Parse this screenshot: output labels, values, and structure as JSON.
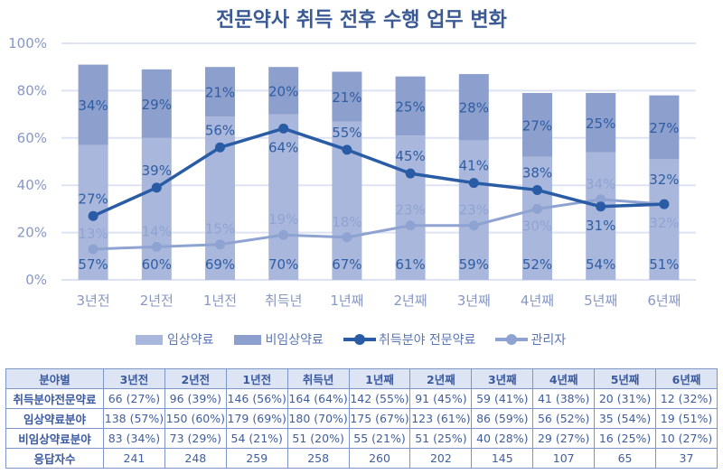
{
  "title": "전문약사 취득 전후 수행 업무 변화",
  "colors": {
    "clinical": "#a9b7dc",
    "non_clinical": "#8c9fcd",
    "specialist_line": "#2a5ca6",
    "manager_line": "#8fa3d2",
    "axis_text": "#8898c4",
    "grid": "#dde3f2"
  },
  "chart_data": {
    "type": "bar",
    "title": "전문약사 취득 전후 수행 업무 변화",
    "xlabel": "",
    "ylabel": "",
    "ylim": [
      0,
      100
    ],
    "yticks": [
      "0%",
      "20%",
      "40%",
      "60%",
      "80%",
      "100%"
    ],
    "grid": true,
    "legend_position": "bottom",
    "categories": [
      "3년전",
      "2년전",
      "1년전",
      "취득년",
      "1년째",
      "2년째",
      "3년째",
      "4년째",
      "5년째",
      "6년째"
    ],
    "series": [
      {
        "name": "임상약료",
        "type": "stacked-bar",
        "values": [
          57,
          60,
          69,
          70,
          67,
          61,
          59,
          52,
          54,
          51
        ]
      },
      {
        "name": "비임상약료",
        "type": "stacked-bar",
        "values": [
          34,
          29,
          21,
          20,
          21,
          25,
          28,
          27,
          25,
          27
        ]
      },
      {
        "name": "취득분야 전문약료",
        "type": "line",
        "values": [
          27,
          39,
          56,
          64,
          55,
          45,
          41,
          38,
          31,
          32
        ]
      },
      {
        "name": "관리자",
        "type": "line",
        "values": [
          13,
          14,
          15,
          19,
          18,
          23,
          23,
          30,
          34,
          32
        ]
      }
    ]
  },
  "legend": [
    {
      "label": "임상약료",
      "kind": "bar-light"
    },
    {
      "label": "비임상약료",
      "kind": "bar-dark"
    },
    {
      "label": "취득분야 전문약료",
      "kind": "line-dark"
    },
    {
      "label": "관리자",
      "kind": "line-light"
    }
  ],
  "table": {
    "headers": [
      "분야별",
      "3년전",
      "2년전",
      "1년전",
      "취득년",
      "1년째",
      "2년째",
      "3년째",
      "4년째",
      "5년째",
      "6년째"
    ],
    "rows": [
      {
        "label": "취득분야전문약료",
        "cells": [
          "66 (27%)",
          "96 (39%)",
          "146 (56%)",
          "164 (64%)",
          "142 (55%)",
          "91 (45%)",
          "59 (41%)",
          "41 (38%)",
          "20 (31%)",
          "12 (32%)"
        ]
      },
      {
        "label": "임상약료분야",
        "cells": [
          "138 (57%)",
          "150 (60%)",
          "179 (69%)",
          "180 (70%)",
          "175 (67%)",
          "123 (61%)",
          "86 (59%)",
          "56 (52%)",
          "35 (54%)",
          "19 (51%)"
        ]
      },
      {
        "label": "비임상약료분야",
        "cells": [
          "83 (34%)",
          "73 (29%)",
          "54 (21%)",
          "51 (20%)",
          "55 (21%)",
          "51 (25%)",
          "40 (28%)",
          "29 (27%)",
          "16 (25%)",
          "10 (27%)"
        ]
      },
      {
        "label": "응답자수",
        "cells": [
          "241",
          "248",
          "259",
          "258",
          "260",
          "202",
          "145",
          "107",
          "65",
          "37"
        ]
      }
    ]
  }
}
